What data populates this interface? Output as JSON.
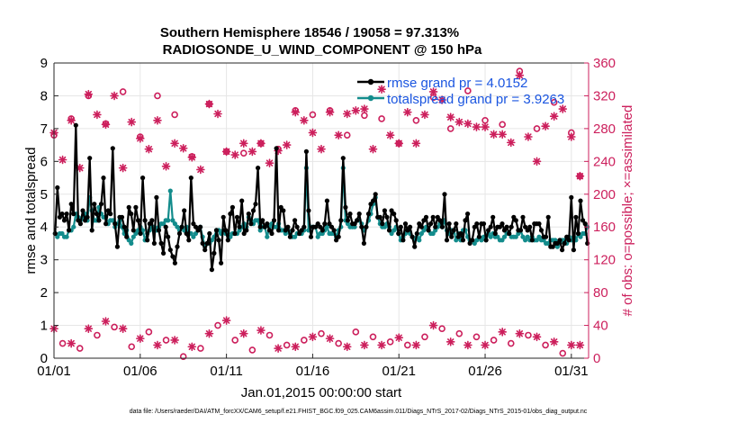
{
  "chart_data": {
    "type": "line",
    "title": "Southern Hemisphere 18546 / 19058 = 97.313%",
    "subtitle": "RADIOSONDE_U_WIND_COMPONENT @ 150 hPa",
    "xlabel": "Jan.01,2015 00:00:00 start",
    "ylabel_left": "rmse and totalspread",
    "ylabel_right": "# of obs: o=possible; ×=assimilated",
    "footnote": "data file: /Users/raeder/DAI/ATM_forcXX/CAM6_setup/f.e21.FHIST_BGC.f09_025.CAM6assim.011/Diags_NTrS_2017-02/Diags_NTrS_2015-01/obs_diag_output.nc",
    "x_tick_labels": [
      "01/01",
      "01/06",
      "01/11",
      "01/16",
      "01/21",
      "01/26",
      "01/31"
    ],
    "x_tick_days": [
      1,
      6,
      11,
      16,
      21,
      26,
      31
    ],
    "xlim": [
      1,
      32
    ],
    "ylim_left": [
      0,
      9
    ],
    "yticks_left": [
      "0",
      "1",
      "2",
      "3",
      "4",
      "5",
      "6",
      "7",
      "8",
      "9"
    ],
    "ylim_right": [
      0,
      360
    ],
    "yticks_right": [
      "0",
      "40",
      "80",
      "120",
      "160",
      "200",
      "240",
      "280",
      "320",
      "360"
    ],
    "grid": true,
    "colors": {
      "rmse": "#000000",
      "spread": "#138c8c",
      "obs": "#cc1f5c",
      "legend_text": "#1a55e0",
      "grid": "#e6e6e6",
      "axis": "#262626"
    },
    "series": [
      {
        "name": "rmse grand pr = 4.0152",
        "axis": "left",
        "values": [
          3.8,
          5.2,
          4.3,
          4.4,
          4.2,
          4.4,
          3.9,
          4.7,
          4.4,
          7.1,
          4.2,
          4.1,
          4.5,
          4.2,
          4.3,
          6.1,
          3.9,
          4.7,
          4.4,
          4.2,
          4.7,
          5.5,
          4.1,
          4.5,
          4.4,
          6.4,
          4.1,
          3.4,
          4.3,
          4.3,
          4.0,
          3.7,
          4.6,
          4.4,
          3.9,
          4.6,
          4.2,
          3.8,
          5.5,
          4.2,
          3.6,
          4.1,
          4.2,
          3.5,
          4.9,
          3.9,
          3.5,
          3.2,
          4.0,
          3.7,
          3.3,
          3.1,
          2.9,
          3.4,
          3.8,
          4.0,
          4.5,
          3.8,
          3.6,
          5.5,
          4.1,
          4.0,
          3.9,
          4.0,
          3.5,
          3.3,
          3.5,
          3.8,
          2.7,
          3.2,
          3.9,
          3.6,
          2.9,
          4.3,
          3.9,
          3.6,
          4.4,
          4.6,
          3.8,
          4.3,
          4.0,
          4.8,
          3.8,
          3.9,
          4.4,
          4.1,
          4.5,
          4.7,
          5.8,
          4.0,
          4.2,
          4.0,
          4.1,
          3.9,
          3.8,
          4.2,
          6.4,
          3.9,
          4.6,
          4.5,
          3.9,
          4.0,
          3.7,
          3.9,
          4.2,
          4.0,
          3.8,
          3.9,
          4.0,
          6.3,
          4.5,
          3.7,
          4.0,
          4.0,
          4.1,
          4.0,
          3.9,
          4.1,
          4.8,
          4.1,
          4.0,
          3.9,
          3.6,
          3.7,
          4.2,
          6.1,
          4.6,
          4.2,
          4.4,
          4.1,
          4.1,
          4.2,
          4.4,
          4.0,
          3.5,
          4.0,
          4.4,
          4.7,
          4.8,
          5.0,
          4.3,
          4.3,
          4.1,
          4.5,
          4.3,
          3.9,
          4.5,
          4.4,
          4.2,
          3.8,
          4.0,
          3.6,
          4.1,
          3.9,
          4.0,
          3.7,
          3.4,
          3.8,
          4.1,
          4.0,
          4.2,
          4.3,
          3.9,
          4.1,
          4.3,
          4.0,
          4.3,
          4.2,
          4.0,
          5.0,
          3.6,
          4.1,
          3.7,
          3.9,
          4.1,
          3.7,
          3.8,
          3.6,
          4.2,
          4.4,
          3.5,
          3.6,
          4.0,
          4.1,
          3.7,
          4.1,
          4.1,
          3.6,
          3.9,
          4.0,
          4.3,
          3.8,
          4.0,
          4.0,
          4.1,
          3.9,
          4.0,
          3.8,
          4.0,
          4.3,
          4.2,
          3.9,
          3.9,
          4.3,
          4.0,
          3.9,
          4.0,
          3.6,
          4.1,
          4.1,
          4.1,
          3.9,
          3.7,
          3.7,
          4.3,
          3.4,
          3.4,
          3.5,
          3.5,
          3.6,
          3.3,
          3.5,
          3.7,
          3.6,
          4.9,
          3.3,
          4.3,
          3.8,
          4.8,
          4.2,
          4.1,
          3.5
        ]
      },
      {
        "name": "totalspread grand pr = 3.9263",
        "axis": "left",
        "values": [
          3.8,
          3.7,
          3.8,
          3.8,
          3.7,
          3.7,
          3.9,
          3.9,
          4.0,
          4.4,
          4.3,
          4.2,
          4.3,
          4.4,
          4.2,
          4.9,
          4.5,
          4.2,
          4.2,
          4.6,
          4.4,
          4.3,
          4.3,
          4.1,
          4.2,
          4.2,
          4.0,
          4.1,
          4.2,
          4.0,
          3.8,
          3.9,
          3.6,
          3.5,
          3.7,
          3.8,
          3.9,
          4.0,
          3.9,
          3.6,
          3.8,
          3.9,
          4.0,
          4.0,
          3.9,
          4.0,
          4.1,
          4.1,
          4.2,
          4.2,
          5.1,
          4.2,
          4.1,
          4.0,
          3.9,
          4.0,
          3.9,
          4.0,
          3.8,
          3.8,
          3.7,
          3.8,
          3.9,
          4.0,
          3.7,
          3.4,
          3.5,
          3.5,
          3.6,
          3.7,
          3.9,
          3.9,
          3.8,
          3.9,
          3.8,
          3.8,
          3.7,
          3.8,
          3.8,
          3.8,
          3.9,
          4.0,
          4.1,
          4.0,
          4.3,
          4.2,
          4.1,
          4.2,
          4.2,
          3.9,
          4.0,
          4.0,
          3.7,
          4.0,
          4.1,
          4.0,
          4.0,
          4.1,
          3.9,
          3.9,
          3.8,
          3.9,
          3.8,
          3.7,
          3.7,
          3.8,
          3.8,
          3.8,
          3.9,
          5.8,
          3.9,
          4.0,
          4.0,
          4.0,
          3.7,
          3.8,
          3.8,
          3.9,
          4.0,
          3.8,
          3.8,
          3.8,
          3.7,
          3.9,
          4.0,
          5.8,
          4.2,
          4.1,
          4.0,
          4.0,
          4.0,
          4.2,
          4.2,
          4.1,
          3.9,
          4.0,
          4.2,
          4.4,
          4.7,
          4.9,
          4.3,
          4.1,
          4.0,
          4.0,
          4.1,
          4.0,
          3.8,
          3.9,
          4.0,
          3.8,
          3.6,
          3.7,
          3.8,
          3.9,
          3.8,
          3.7,
          3.6,
          3.7,
          3.6,
          3.8,
          3.9,
          4.0,
          3.9,
          3.8,
          3.8,
          3.9,
          4.0,
          4.1,
          4.0,
          4.2,
          3.9,
          3.8,
          3.9,
          3.9,
          3.6,
          3.8,
          3.6,
          3.9,
          3.9,
          3.7,
          3.6,
          3.6,
          3.5,
          3.6,
          3.7,
          3.6,
          3.7,
          3.6,
          3.8,
          3.7,
          3.8,
          3.7,
          3.7,
          3.6,
          3.6,
          3.7,
          3.8,
          3.8,
          3.7,
          3.7,
          3.7,
          3.8,
          3.9,
          3.7,
          3.6,
          3.7,
          3.6,
          3.7,
          3.6,
          3.6,
          3.7,
          3.6,
          3.6,
          3.5,
          3.5,
          3.6,
          3.6,
          3.6,
          3.4,
          3.5,
          3.6,
          3.6,
          3.5,
          3.7,
          3.6,
          3.7,
          3.6,
          3.8,
          3.7,
          3.8,
          3.8,
          4.0
        ]
      },
      {
        "name": "possible observations (upper group)",
        "axis": "right",
        "marker": "circle",
        "x": [
          1.0,
          2.0,
          3.0,
          4.0,
          5.0,
          6.0,
          7.0,
          8.0,
          9.0,
          10.0,
          11.0,
          12.0,
          13.0,
          14.0,
          15.0,
          16.0,
          17.0,
          18.0,
          19.0,
          20.0,
          21.0,
          22.0,
          23.0,
          24.0,
          25.0,
          26.0,
          27.0,
          28.0,
          29.0,
          30.0,
          31.0,
          31.5
        ],
        "values": [
          272,
          292,
          320,
          286,
          325,
          270,
          320,
          297,
          246,
          310,
          252,
          250,
          262,
          255,
          302,
          297,
          302,
          272,
          296,
          292,
          262,
          290,
          318,
          280,
          326,
          290,
          285,
          350,
          280,
          312,
          275,
          222
        ]
      },
      {
        "name": "assimilated observations (upper group)",
        "axis": "right",
        "marker": "star",
        "x": [
          1.0,
          1.5,
          2.0,
          2.5,
          3.0,
          3.5,
          4.0,
          4.5,
          5.0,
          5.5,
          6.0,
          6.5,
          7.0,
          7.5,
          8.0,
          8.5,
          9.0,
          9.5,
          10.0,
          10.5,
          11.0,
          11.5,
          12.0,
          12.5,
          13.0,
          13.5,
          14.0,
          14.5,
          15.0,
          15.5,
          16.0,
          16.5,
          17.0,
          17.5,
          18.0,
          18.5,
          19.0,
          19.5,
          20.0,
          20.5,
          21.0,
          21.5,
          22.0,
          22.5,
          23.0,
          23.5,
          24.0,
          24.5,
          25.0,
          25.5,
          26.0,
          26.5,
          27.0,
          27.5,
          28.0,
          28.5,
          29.0,
          29.5,
          30.0,
          30.5,
          31.0,
          31.5
        ],
        "values": [
          275,
          242,
          290,
          232,
          322,
          297,
          285,
          320,
          232,
          288,
          268,
          255,
          290,
          234,
          262,
          256,
          245,
          230,
          310,
          298,
          252,
          248,
          262,
          252,
          262,
          238,
          253,
          260,
          300,
          290,
          275,
          255,
          300,
          272,
          298,
          302,
          304,
          255,
          328,
          272,
          262,
          300,
          262,
          297,
          325,
          315,
          294,
          288,
          286,
          282,
          282,
          273,
          273,
          263,
          345,
          270,
          240,
          283,
          295,
          304,
          270,
          222
        ]
      },
      {
        "name": "possible observations (lower group)",
        "axis": "right",
        "marker": "circle",
        "x": [
          1.5,
          2.5,
          3.5,
          4.5,
          5.5,
          6.5,
          7.5,
          8.5,
          9.5,
          10.5,
          11.5,
          12.5,
          13.5,
          14.5,
          15.5,
          16.5,
          17.5,
          18.5,
          19.5,
          20.5,
          21.5,
          22.5,
          23.5,
          24.5,
          25.5,
          26.5,
          27.5,
          28.5,
          29.5,
          30.5
        ],
        "values": [
          18,
          12,
          28,
          38,
          14,
          32,
          22,
          2,
          12,
          40,
          22,
          10,
          28,
          16,
          22,
          30,
          18,
          32,
          26,
          20,
          16,
          26,
          36,
          30,
          26,
          22,
          18,
          28,
          16,
          6
        ]
      },
      {
        "name": "assimilated observations (lower group)",
        "axis": "right",
        "marker": "star",
        "x": [
          1.0,
          2.0,
          3.0,
          4.0,
          5.0,
          6.0,
          7.0,
          8.0,
          9.0,
          10.0,
          11.0,
          12.0,
          13.0,
          14.0,
          15.0,
          16.0,
          17.0,
          18.0,
          19.0,
          20.0,
          21.0,
          22.0,
          23.0,
          24.0,
          25.0,
          26.0,
          27.0,
          28.0,
          29.0,
          30.0,
          31.0,
          31.5
        ],
        "values": [
          36,
          18,
          36,
          45,
          36,
          24,
          16,
          22,
          14,
          30,
          46,
          30,
          34,
          12,
          14,
          26,
          24,
          14,
          16,
          16,
          25,
          16,
          40,
          20,
          16,
          16,
          32,
          30,
          26,
          20,
          16,
          16
        ]
      }
    ]
  }
}
